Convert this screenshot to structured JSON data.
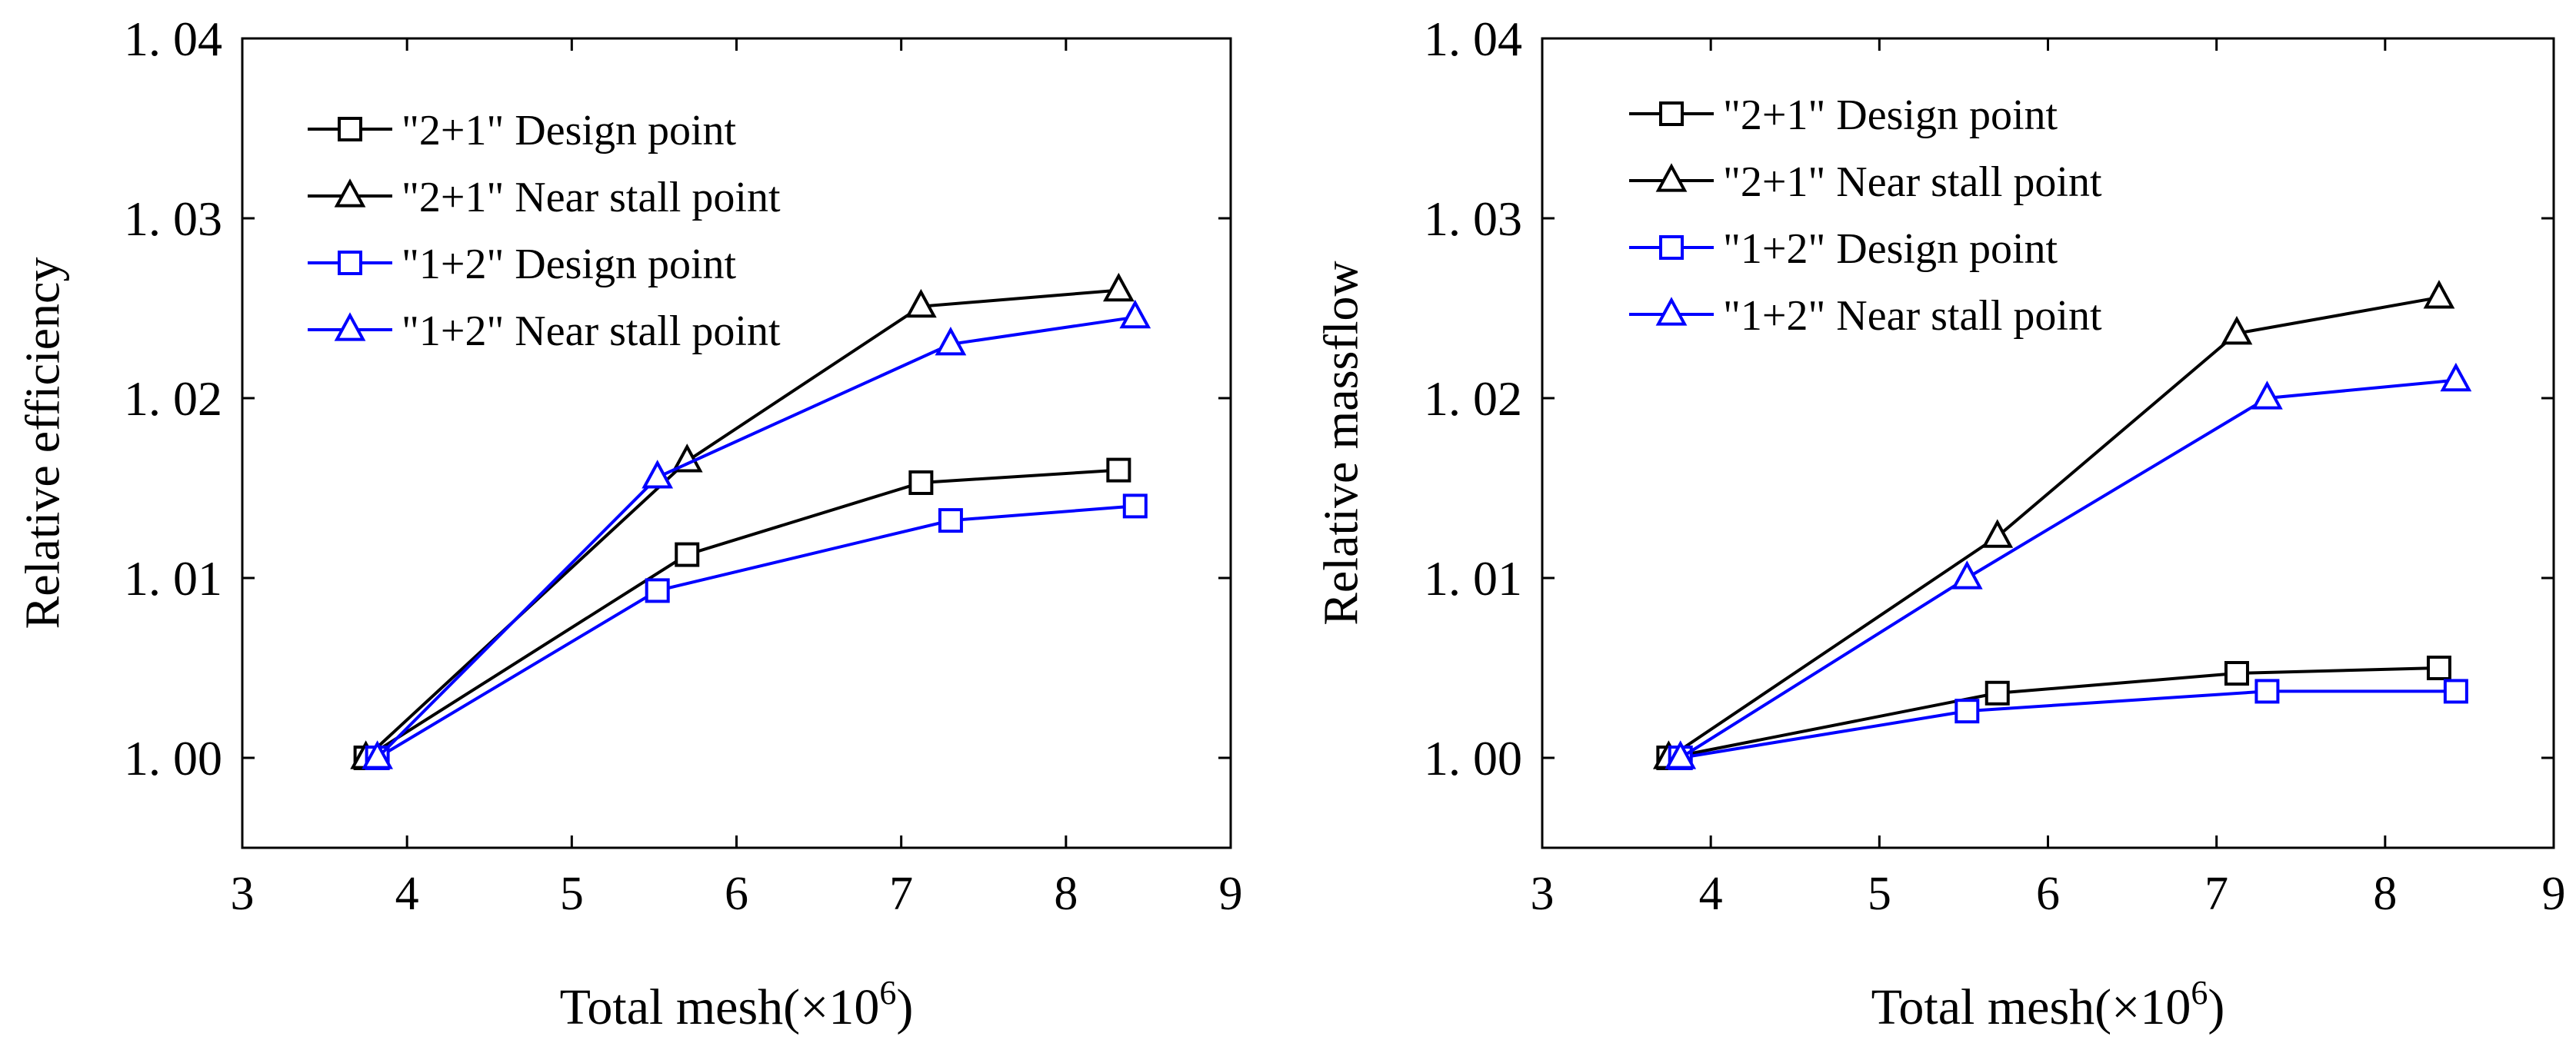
{
  "chart_data": [
    {
      "type": "line",
      "title": "",
      "xlabel": "Total mesh(×10",
      "xlabel_sup": "6",
      "xlabel_close": ")",
      "ylabel": "Relative efficiency",
      "xlim": [
        3,
        9
      ],
      "ylim": [
        0.995,
        1.04
      ],
      "xticks": [
        3,
        4,
        5,
        6,
        7,
        8,
        9
      ],
      "xtick_labels": [
        "3",
        "4",
        "5",
        "6",
        "7",
        "8",
        "9"
      ],
      "yticks": [
        1.0,
        1.01,
        1.02,
        1.03,
        1.04
      ],
      "ytick_labels": [
        "1. 00",
        "1. 01",
        "1. 02",
        "1. 03",
        "1. 04"
      ],
      "grid": false,
      "legend_position": "top-left",
      "series": [
        {
          "name": "\"2+1\" Design point",
          "color": "#000000",
          "marker": "square",
          "x": [
            3.75,
            5.7,
            7.12,
            8.32
          ],
          "y": [
            1.0,
            1.0113,
            1.0153,
            1.016
          ]
        },
        {
          "name": "\"2+1\" Near stall point",
          "color": "#000000",
          "marker": "triangle",
          "x": [
            3.75,
            5.7,
            7.12,
            8.32
          ],
          "y": [
            1.0,
            1.0165,
            1.0251,
            1.026
          ]
        },
        {
          "name": "\"1+2\" Design point",
          "color": "#0000ff",
          "marker": "square",
          "x": [
            3.82,
            5.52,
            7.3,
            8.42
          ],
          "y": [
            1.0,
            1.0093,
            1.0132,
            1.014
          ]
        },
        {
          "name": "\"1+2\" Near stall point",
          "color": "#0000ff",
          "marker": "triangle",
          "x": [
            3.82,
            5.52,
            7.3,
            8.42
          ],
          "y": [
            1.0,
            1.0156,
            1.023,
            1.0245
          ]
        }
      ]
    },
    {
      "type": "line",
      "title": "",
      "xlabel": "Total mesh(×10",
      "xlabel_sup": "6",
      "xlabel_close": ")",
      "ylabel": "Relative massflow",
      "xlim": [
        3,
        9
      ],
      "ylim": [
        0.995,
        1.04
      ],
      "xticks": [
        3,
        4,
        5,
        6,
        7,
        8,
        9
      ],
      "xtick_labels": [
        "3",
        "4",
        "5",
        "6",
        "7",
        "8",
        "9"
      ],
      "yticks": [
        1.0,
        1.01,
        1.02,
        1.03,
        1.04
      ],
      "ytick_labels": [
        "1. 00",
        "1. 01",
        "1. 02",
        "1. 03",
        "1. 04"
      ],
      "grid": false,
      "legend_position": "top-left",
      "series": [
        {
          "name": "\"2+1\" Design point",
          "color": "#000000",
          "marker": "square",
          "x": [
            3.75,
            5.7,
            7.12,
            8.32
          ],
          "y": [
            1.0,
            1.0036,
            1.0047,
            1.005
          ]
        },
        {
          "name": "\"2+1\" Near stall point",
          "color": "#000000",
          "marker": "triangle",
          "x": [
            3.75,
            5.7,
            7.12,
            8.32
          ],
          "y": [
            1.0,
            1.0123,
            1.0236,
            1.0256
          ]
        },
        {
          "name": "\"1+2\" Design point",
          "color": "#0000ff",
          "marker": "square",
          "x": [
            3.82,
            5.52,
            7.3,
            8.42
          ],
          "y": [
            1.0,
            1.0026,
            1.0037,
            1.0037
          ]
        },
        {
          "name": "\"1+2\" Near stall point",
          "color": "#0000ff",
          "marker": "triangle",
          "x": [
            3.82,
            5.52,
            7.3,
            8.42
          ],
          "y": [
            1.0,
            1.01,
            1.02,
            1.021
          ]
        }
      ]
    }
  ]
}
